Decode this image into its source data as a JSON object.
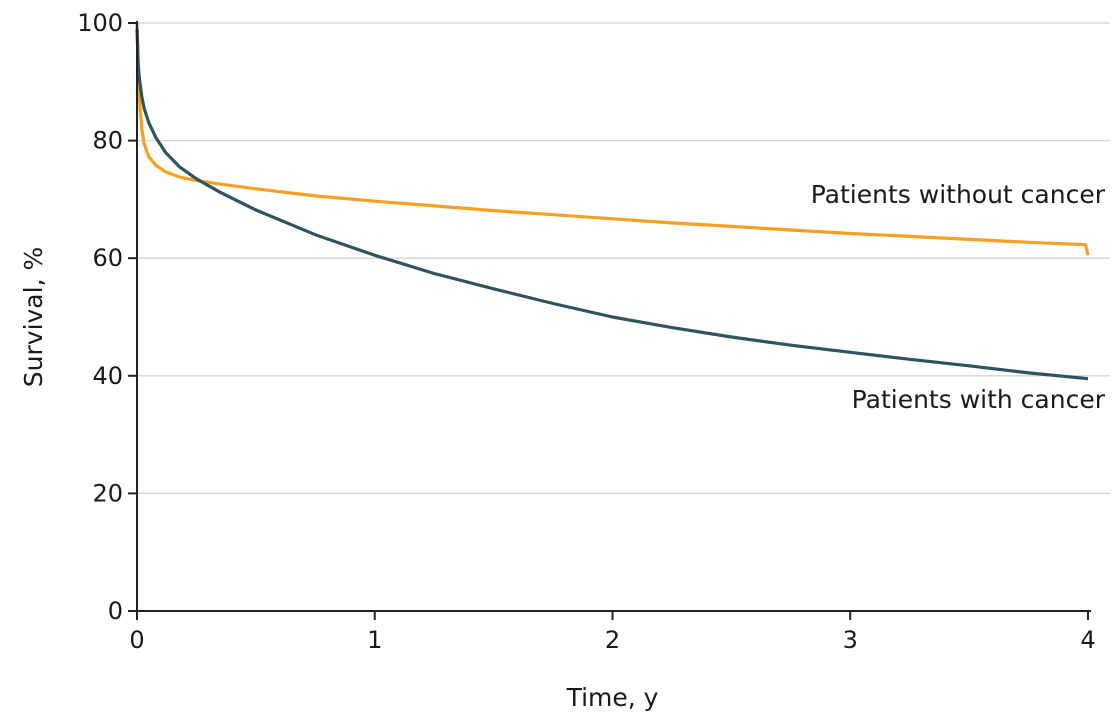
{
  "chart_data": {
    "type": "line",
    "title": "",
    "xlabel": "Time, y",
    "ylabel": "Survival, %",
    "xlim": [
      0,
      4
    ],
    "ylim": [
      0,
      100
    ],
    "xticks": [
      0,
      1,
      2,
      3,
      4
    ],
    "yticks": [
      0,
      20,
      40,
      60,
      80,
      100
    ],
    "grid": "horizontal",
    "legend": "inline labels",
    "series": [
      {
        "name": "Patients without cancer",
        "color": "#F5A020",
        "x": [
          0,
          0.005,
          0.01,
          0.02,
          0.03,
          0.05,
          0.08,
          0.12,
          0.18,
          0.25,
          0.35,
          0.5,
          0.75,
          1.0,
          1.25,
          1.5,
          1.75,
          2.0,
          2.25,
          2.5,
          2.75,
          3.0,
          3.25,
          3.5,
          3.75,
          3.99,
          4.0
        ],
        "y": [
          100,
          93,
          87,
          82,
          79.5,
          77.2,
          75.8,
          74.7,
          73.8,
          73.2,
          72.6,
          71.8,
          70.6,
          69.7,
          68.9,
          68.1,
          67.4,
          66.7,
          66.0,
          65.4,
          64.8,
          64.2,
          63.7,
          63.2,
          62.7,
          62.3,
          60.5
        ]
      },
      {
        "name": "Patients with cancer",
        "color": "#2D5560",
        "x": [
          0,
          0.005,
          0.01,
          0.02,
          0.03,
          0.05,
          0.08,
          0.12,
          0.18,
          0.25,
          0.35,
          0.5,
          0.75,
          1.0,
          1.25,
          1.5,
          1.75,
          2.0,
          2.25,
          2.5,
          2.75,
          3.0,
          3.25,
          3.5,
          3.75,
          4.0
        ],
        "y": [
          99,
          93,
          90.5,
          87.5,
          85.5,
          83,
          80.5,
          78,
          75.5,
          73.5,
          71.2,
          68.2,
          64,
          60.5,
          57.4,
          54.8,
          52.3,
          50,
          48.2,
          46.6,
          45.2,
          44,
          42.8,
          41.7,
          40.5,
          39.5
        ]
      }
    ],
    "annotations": [
      {
        "text": "Patients without cancer",
        "x": 4.0,
        "y": 69.4
      },
      {
        "text": "Patients with cancer",
        "x": 4.0,
        "y": 34.5
      }
    ]
  }
}
